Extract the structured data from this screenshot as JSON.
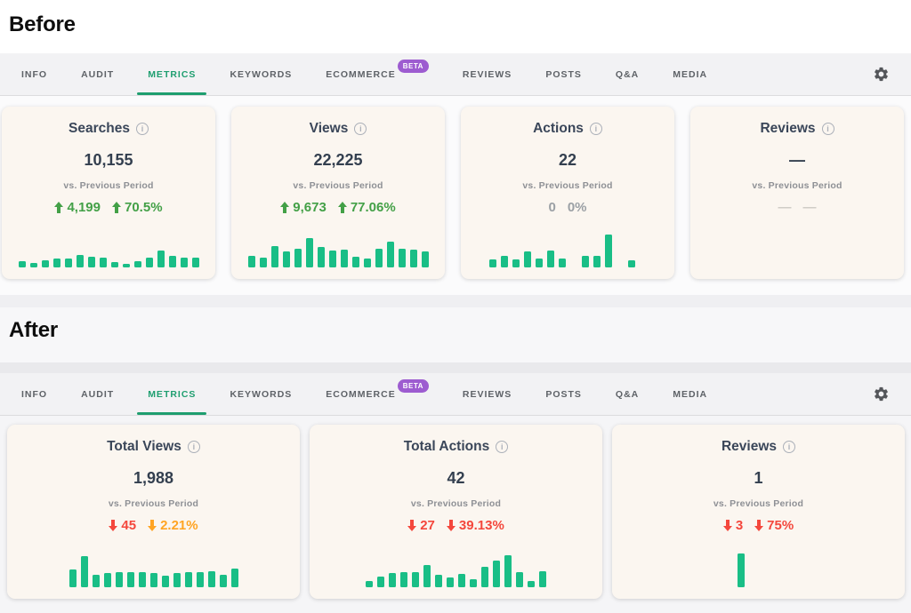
{
  "header": {
    "before_label": "Before",
    "after_label": "After"
  },
  "tabs": {
    "items": [
      {
        "label": "INFO"
      },
      {
        "label": "AUDIT"
      },
      {
        "label": "METRICS",
        "active": true
      },
      {
        "label": "KEYWORDS"
      },
      {
        "label": "ECOMMERCE",
        "badge": "BETA"
      },
      {
        "label": "REVIEWS"
      },
      {
        "label": "POSTS"
      },
      {
        "label": "Q&A"
      },
      {
        "label": "MEDIA"
      }
    ]
  },
  "colors": {
    "bar_green": "#19be86",
    "active_tab_green": "#1e9e6f",
    "beta_purple": "#9d5cd0",
    "change_colors": {
      "green": "#43a047",
      "red": "#f4473c",
      "orange": "#ffa423",
      "gray": "#9ba0a5",
      "lightgray": "#cfccc6"
    }
  },
  "before": {
    "cards": [
      {
        "title": "Searches",
        "value": "10,155",
        "period_label": "vs. Previous Period",
        "changes": [
          {
            "direction": "up",
            "text": "4,199",
            "color": "green"
          },
          {
            "direction": "up",
            "text": "70.5%",
            "color": "green"
          }
        ],
        "bars": [
          7,
          5,
          8,
          10,
          10,
          14,
          12,
          11,
          6,
          4,
          7,
          11,
          19,
          13,
          11,
          11
        ]
      },
      {
        "title": "Views",
        "value": "22,225",
        "period_label": "vs. Previous Period",
        "changes": [
          {
            "direction": "up",
            "text": "9,673",
            "color": "green"
          },
          {
            "direction": "up",
            "text": "77.06%",
            "color": "green"
          }
        ],
        "bars": [
          13,
          11,
          24,
          18,
          21,
          33,
          23,
          19,
          20,
          12,
          10,
          21,
          29,
          21,
          20,
          18
        ]
      },
      {
        "title": "Actions",
        "value": "22",
        "period_label": "vs. Previous Period",
        "changes": [
          {
            "direction": "none",
            "text": "0",
            "color": "gray"
          },
          {
            "direction": "none",
            "text": "0%",
            "color": "gray"
          }
        ],
        "bars": [
          9,
          13,
          9,
          18,
          10,
          19,
          10,
          0,
          13,
          13,
          37,
          0,
          8,
          0
        ]
      },
      {
        "title": "Reviews",
        "value": "—",
        "period_label": "vs. Previous Period",
        "changes": [
          {
            "direction": "none",
            "text": "—",
            "color": "lightgray"
          },
          {
            "direction": "none",
            "text": "—",
            "color": "lightgray"
          }
        ],
        "bars": []
      }
    ]
  },
  "after": {
    "cards": [
      {
        "title": "Total Views",
        "value": "1,988",
        "period_label": "vs. Previous Period",
        "changes": [
          {
            "direction": "down",
            "text": "45",
            "color": "red"
          },
          {
            "direction": "down",
            "text": "2.21%",
            "color": "orange"
          }
        ],
        "bars": [
          20,
          35,
          14,
          16,
          17,
          17,
          17,
          16,
          13,
          16,
          17,
          17,
          18,
          14,
          21
        ]
      },
      {
        "title": "Total Actions",
        "value": "42",
        "period_label": "vs. Previous Period",
        "changes": [
          {
            "direction": "down",
            "text": "27",
            "color": "red"
          },
          {
            "direction": "down",
            "text": "39.13%",
            "color": "red"
          }
        ],
        "bars": [
          7,
          12,
          16,
          17,
          17,
          25,
          14,
          11,
          15,
          9,
          23,
          30,
          36,
          17,
          7,
          18
        ]
      },
      {
        "title": "Reviews",
        "value": "1",
        "period_label": "vs. Previous Period",
        "changes": [
          {
            "direction": "down",
            "text": "3",
            "color": "red"
          },
          {
            "direction": "down",
            "text": "75%",
            "color": "red"
          }
        ],
        "bars": [
          0,
          0,
          0,
          0,
          0,
          0,
          38,
          0,
          0,
          0,
          0,
          0,
          0,
          0,
          0,
          0
        ]
      }
    ]
  }
}
